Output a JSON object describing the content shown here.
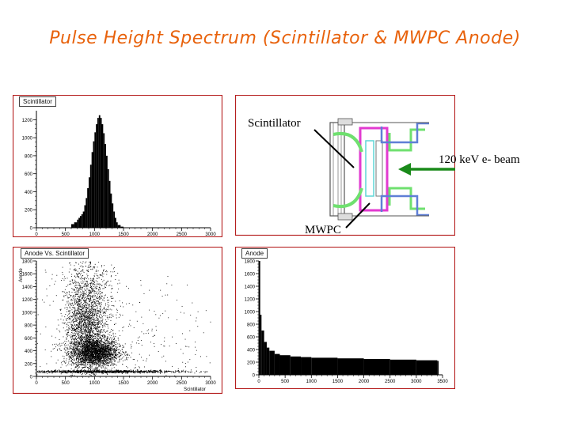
{
  "slide": {
    "title": "Pulse Height Spectrum (Scintillator & MWPC Anode)"
  },
  "colors": {
    "title": "#e8620c",
    "panel_border": "#b51e1e",
    "arrow": "#1a8a1a",
    "detector_magenta": "#e23ad0",
    "detector_green": "#6fe06f",
    "detector_blue": "#5f7fd6",
    "detector_cyan": "#5fd6d6"
  },
  "diagram": {
    "scintillator_label": "Scintillator",
    "beam_label": "120 keV e- beam",
    "mwpc_label": "MWPC"
  },
  "chart_data": [
    {
      "id": "scintillator",
      "type": "bar",
      "title": "Scintillator",
      "xlabel": "",
      "ylabel": "",
      "xlim": [
        0,
        3000
      ],
      "ylim": [
        0,
        1300
      ],
      "x_ticks": [
        0,
        500,
        1000,
        1500,
        2000,
        2500,
        3000
      ],
      "y_ticks": [
        0,
        200,
        400,
        600,
        800,
        1000,
        1200
      ],
      "x": [
        600,
        650,
        700,
        725,
        750,
        775,
        800,
        825,
        850,
        875,
        900,
        925,
        950,
        975,
        1000,
        1025,
        1050,
        1075,
        1100,
        1125,
        1150,
        1175,
        1200,
        1225,
        1250,
        1275,
        1300,
        1325,
        1350,
        1375,
        1400,
        1450,
        1500
      ],
      "values": [
        40,
        60,
        90,
        110,
        130,
        150,
        180,
        250,
        330,
        440,
        560,
        700,
        840,
        960,
        1060,
        1150,
        1220,
        1250,
        1220,
        1150,
        1050,
        930,
        800,
        650,
        520,
        380,
        270,
        180,
        110,
        60,
        30,
        12,
        4
      ]
    },
    {
      "id": "anode_vs_scintillator",
      "type": "scatter",
      "title": "Anode Vs. Scintillator",
      "xlabel": "Scintillator",
      "ylabel": "Anode",
      "xlim": [
        0,
        3000
      ],
      "ylim": [
        0,
        1800
      ],
      "x_ticks": [
        0,
        500,
        1000,
        1500,
        2000,
        2500,
        3000
      ],
      "y_ticks": [
        0,
        200,
        400,
        600,
        800,
        1000,
        1200,
        1400,
        1600,
        1800
      ],
      "clusters": [
        {
          "x_center": 1000,
          "x_spread": 200,
          "y_center": 380,
          "y_spread": 110,
          "points": 2600
        },
        {
          "x_center": 850,
          "x_spread": 180,
          "y_center": 800,
          "y_spread": 330,
          "points": 1900
        },
        {
          "x_center": 900,
          "x_spread": 250,
          "y_center": 1400,
          "y_spread": 300,
          "points": 500
        },
        {
          "x_center": 1100,
          "x_spread": 700,
          "y_center": 80,
          "y_spread": 10,
          "points": 1200
        },
        {
          "x_center": 1500,
          "x_spread": 900,
          "y_center": 500,
          "y_spread": 450,
          "points": 400
        }
      ]
    },
    {
      "id": "anode",
      "type": "bar",
      "title": "Anode",
      "xlabel": "",
      "ylabel": "",
      "xlim": [
        0,
        3500
      ],
      "ylim": [
        0,
        1800
      ],
      "x_ticks": [
        0,
        500,
        1000,
        1500,
        2000,
        2500,
        3000,
        3500
      ],
      "y_ticks": [
        0,
        200,
        400,
        600,
        800,
        1000,
        1200,
        1400,
        1600,
        1800
      ],
      "x": [
        0,
        25,
        50,
        100,
        150,
        200,
        300,
        400,
        600,
        800,
        1000,
        1500,
        2000,
        2500,
        3000,
        3400
      ],
      "values": [
        1800,
        950,
        700,
        520,
        430,
        380,
        330,
        310,
        290,
        280,
        270,
        260,
        250,
        240,
        230,
        220
      ]
    }
  ]
}
